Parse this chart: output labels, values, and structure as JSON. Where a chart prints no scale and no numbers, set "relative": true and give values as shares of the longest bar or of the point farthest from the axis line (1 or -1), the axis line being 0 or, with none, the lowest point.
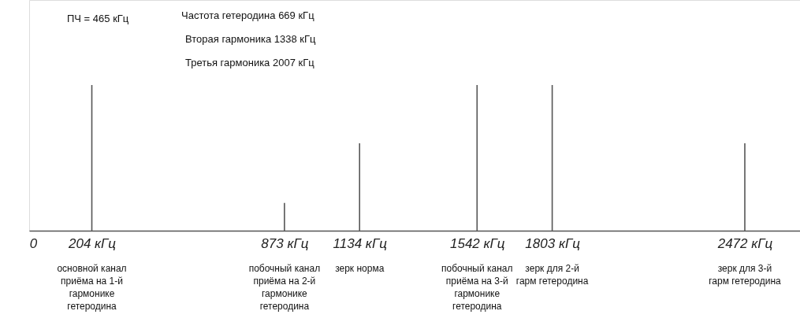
{
  "chart_data": {
    "type": "bar",
    "relative": true,
    "color": "#555555",
    "x": [
      204,
      873,
      1134,
      1542,
      1803,
      2472
    ],
    "values": [
      1,
      0.19,
      0.6,
      1,
      1,
      0.6
    ],
    "xlim": [
      0,
      2650
    ],
    "xticks": [
      0,
      {
        "value": 204,
        "label": "204 кГц"
      },
      {
        "value": 873,
        "label": "873 кГц"
      },
      {
        "value": 1134,
        "label": "1134 кГц"
      },
      {
        "value": 1542,
        "label": "1542 кГц"
      },
      {
        "value": 1803,
        "label": "1803 кГц"
      },
      {
        "value": 2472,
        "label": "2472 кГц"
      }
    ],
    "grid": false,
    "annotations": [
      "ПЧ = 465 кГц",
      "Частота гетеродина 669 кГц",
      "Вторая гармоника 1338 кГц",
      "Третья гармоника 2007 кГц",
      "основной канал\nприёма на 1-й\nгармонике\nгетеродина",
      "побочный канал\nприёма на 2-й\nгармонике\nгетеродина",
      "зерк норма",
      "побочный канал\nприёма на 3-й\nгармонике\nгетеродина",
      "зерк для 2-й\nгарм гетеродина",
      "зерк для 3-й\nгарм гетеродина"
    ]
  }
}
